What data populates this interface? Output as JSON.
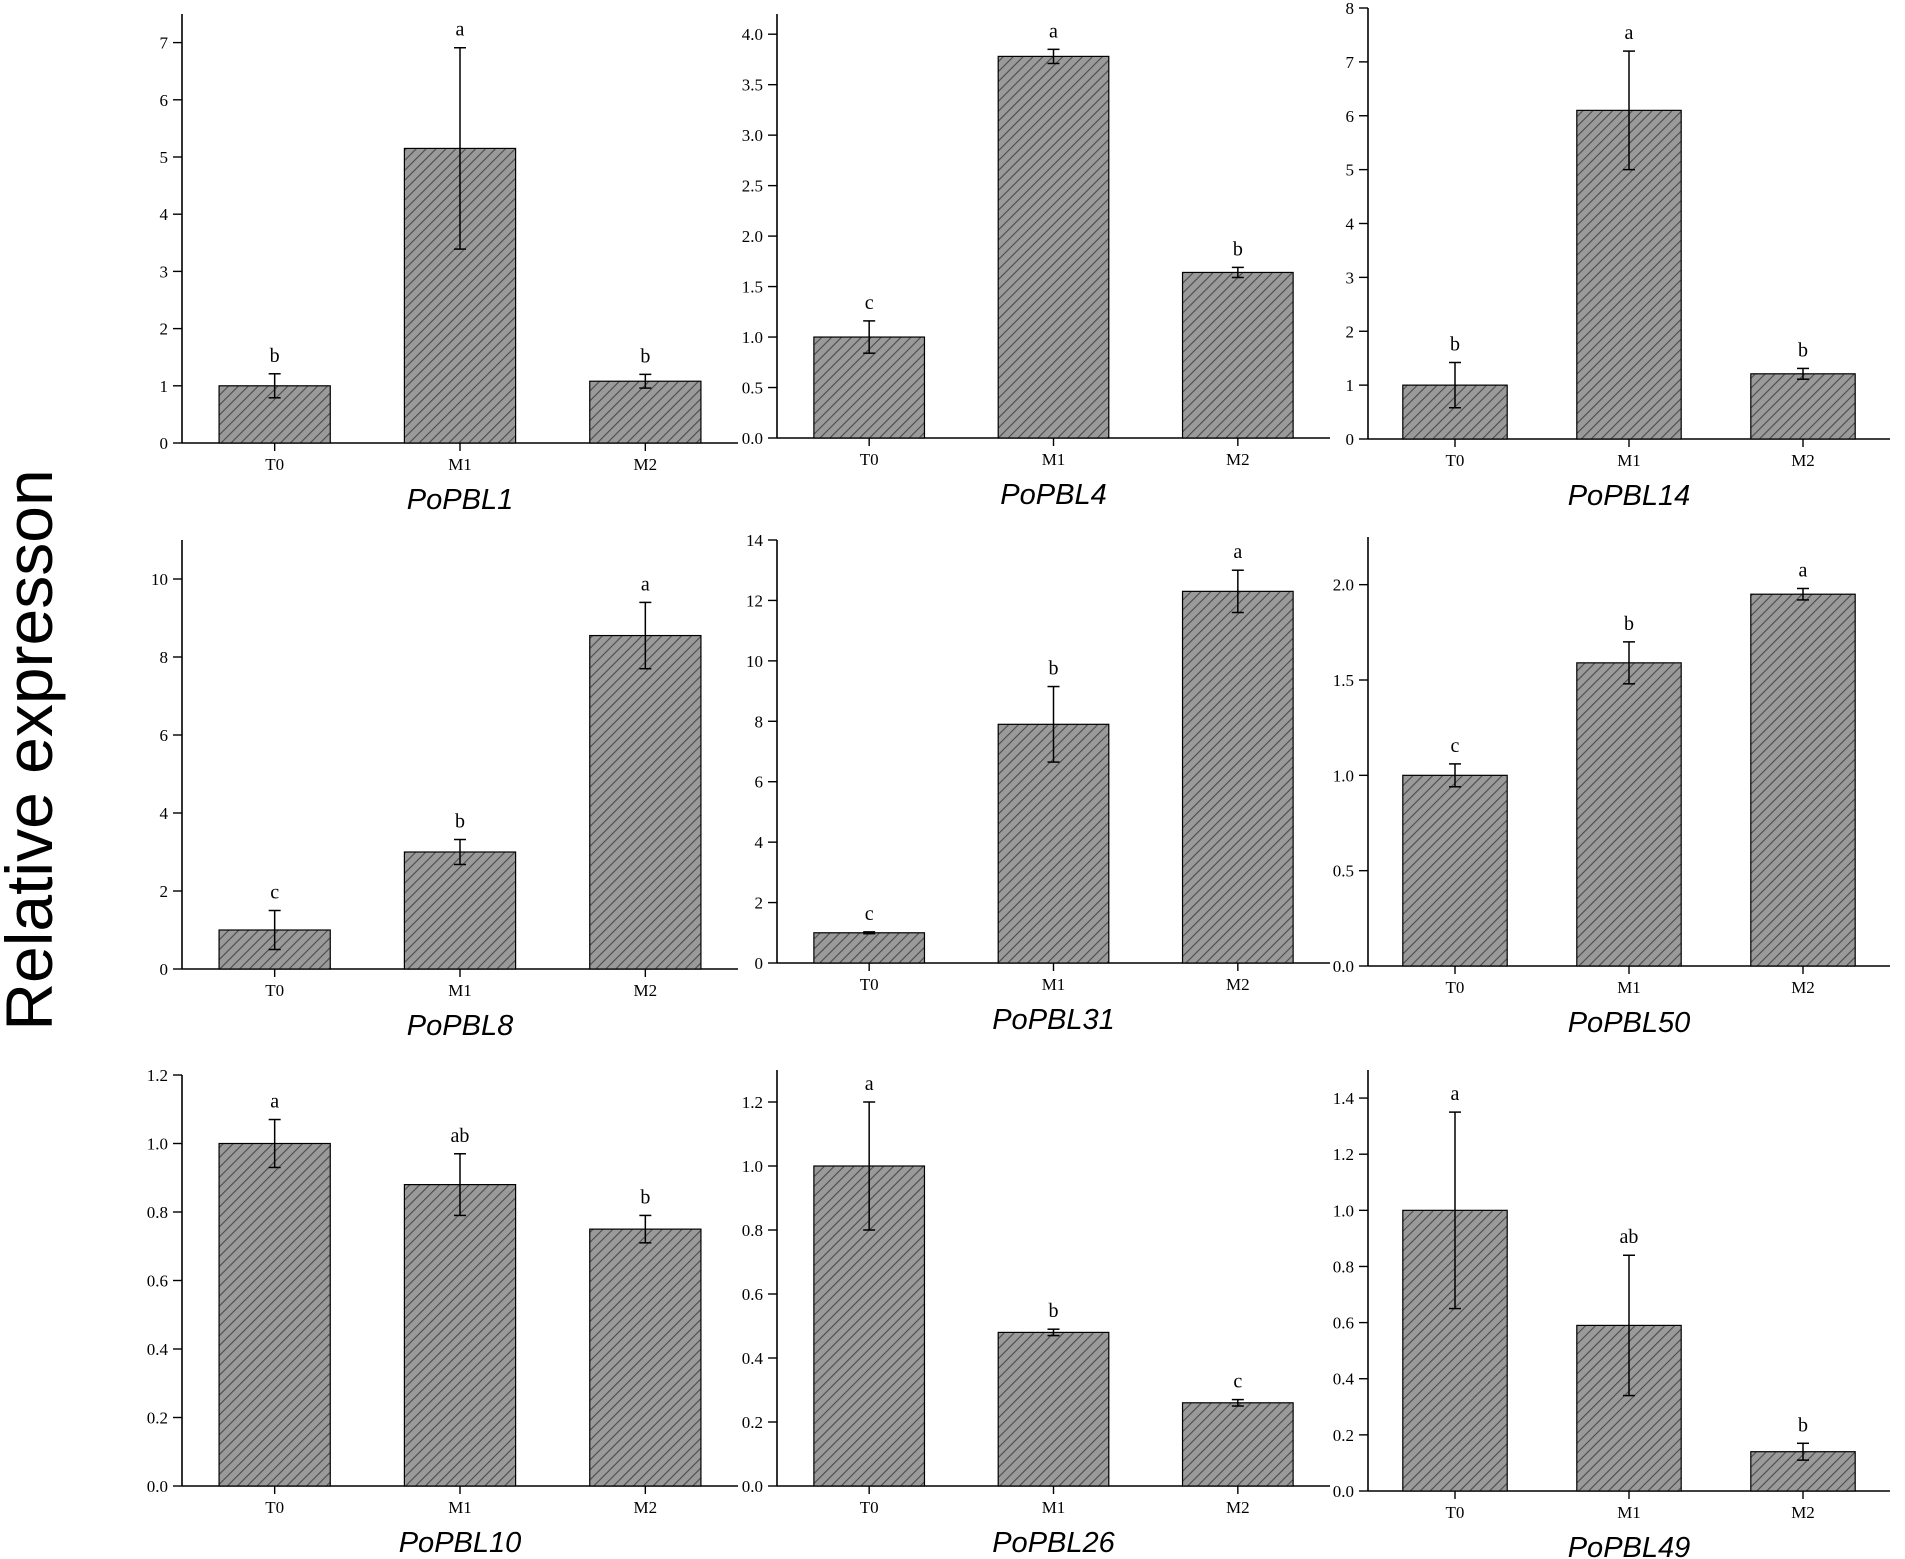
{
  "figure": {
    "ylabel": "Relative expresson"
  },
  "colors": {
    "bar_fill": "#9a9a9a",
    "hatch": "#4a4a4a",
    "axis": "#000000"
  },
  "chart_data": [
    {
      "type": "bar",
      "title": "PoPBL1",
      "categories": [
        "T0",
        "M1",
        "M2"
      ],
      "values": [
        1.0,
        5.15,
        1.08
      ],
      "errors": [
        0.21,
        1.76,
        0.12
      ],
      "letters": [
        "b",
        "a",
        "b"
      ],
      "ylim": [
        0,
        7.5
      ],
      "yticks": [
        0,
        1,
        2,
        3,
        4,
        5,
        6,
        7
      ],
      "ytick_labels": [
        "0",
        "1",
        "2",
        "3",
        "4",
        "5",
        "6",
        "7"
      ]
    },
    {
      "type": "bar",
      "title": "PoPBL4",
      "categories": [
        "T0",
        "M1",
        "M2"
      ],
      "values": [
        1.0,
        3.78,
        1.64
      ],
      "errors": [
        0.16,
        0.07,
        0.05
      ],
      "letters": [
        "c",
        "a",
        "b"
      ],
      "ylim": [
        0,
        4.2
      ],
      "yticks": [
        0,
        0.5,
        1,
        1.5,
        2,
        2.5,
        3,
        3.5,
        4
      ],
      "ytick_labels": [
        "0.0",
        "0.5",
        "1.0",
        "1.5",
        "2.0",
        "2.5",
        "3.0",
        "3.5",
        "4.0"
      ]
    },
    {
      "type": "bar",
      "title": "PoPBL14",
      "categories": [
        "T0",
        "M1",
        "M2"
      ],
      "values": [
        1.0,
        6.1,
        1.21
      ],
      "errors": [
        0.42,
        1.1,
        0.1
      ],
      "letters": [
        "b",
        "a",
        "b"
      ],
      "ylim": [
        0,
        8
      ],
      "yticks": [
        0,
        1,
        2,
        3,
        4,
        5,
        6,
        7,
        8
      ],
      "ytick_labels": [
        "0",
        "1",
        "2",
        "3",
        "4",
        "5",
        "6",
        "7",
        "8"
      ]
    },
    {
      "type": "bar",
      "title": "PoPBL8",
      "categories": [
        "T0",
        "M1",
        "M2"
      ],
      "values": [
        1.0,
        3.0,
        8.55
      ],
      "errors": [
        0.5,
        0.32,
        0.85
      ],
      "letters": [
        "c",
        "b",
        "a"
      ],
      "ylim": [
        0,
        11
      ],
      "yticks": [
        0,
        2,
        4,
        6,
        8,
        10
      ],
      "ytick_labels": [
        "0",
        "2",
        "4",
        "6",
        "8",
        "10"
      ]
    },
    {
      "type": "bar",
      "title": "PoPBL31",
      "categories": [
        "T0",
        "M1",
        "M2"
      ],
      "values": [
        1.0,
        7.9,
        12.3
      ],
      "errors": [
        0.03,
        1.25,
        0.7
      ],
      "letters": [
        "c",
        "b",
        "a"
      ],
      "ylim": [
        0,
        14
      ],
      "yticks": [
        0,
        2,
        4,
        6,
        8,
        10,
        12,
        14
      ],
      "ytick_labels": [
        "0",
        "2",
        "4",
        "6",
        "8",
        "10",
        "12",
        "14"
      ]
    },
    {
      "type": "bar",
      "title": "PoPBL50",
      "categories": [
        "T0",
        "M1",
        "M2"
      ],
      "values": [
        1.0,
        1.59,
        1.95
      ],
      "errors": [
        0.06,
        0.11,
        0.03
      ],
      "letters": [
        "c",
        "b",
        "a"
      ],
      "ylim": [
        0,
        2.25
      ],
      "yticks": [
        0,
        0.5,
        1,
        1.5,
        2
      ],
      "ytick_labels": [
        "0.0",
        "0.5",
        "1.0",
        "1.5",
        "2.0"
      ]
    },
    {
      "type": "bar",
      "title": "PoPBL10",
      "categories": [
        "T0",
        "M1",
        "M2"
      ],
      "values": [
        1.0,
        0.88,
        0.75
      ],
      "errors": [
        0.07,
        0.09,
        0.04
      ],
      "letters": [
        "a",
        "ab",
        "b"
      ],
      "ylim": [
        0,
        1.2
      ],
      "yticks": [
        0,
        0.2,
        0.4,
        0.6,
        0.8,
        1,
        1.2
      ],
      "ytick_labels": [
        "0.0",
        "0.2",
        "0.4",
        "0.6",
        "0.8",
        "1.0",
        "1.2"
      ]
    },
    {
      "type": "bar",
      "title": "PoPBL26",
      "categories": [
        "T0",
        "M1",
        "M2"
      ],
      "values": [
        1.0,
        0.48,
        0.26
      ],
      "errors": [
        0.2,
        0.01,
        0.01
      ],
      "letters": [
        "a",
        "b",
        "c"
      ],
      "ylim": [
        0,
        1.3
      ],
      "yticks": [
        0,
        0.2,
        0.4,
        0.6,
        0.8,
        1,
        1.2
      ],
      "ytick_labels": [
        "0.0",
        "0.2",
        "0.4",
        "0.6",
        "0.8",
        "1.0",
        "1.2"
      ]
    },
    {
      "type": "bar",
      "title": "PoPBL49",
      "categories": [
        "T0",
        "M1",
        "M2"
      ],
      "values": [
        1.0,
        0.59,
        0.14
      ],
      "errors": [
        0.35,
        0.25,
        0.03
      ],
      "letters": [
        "a",
        "ab",
        "b"
      ],
      "ylim": [
        0,
        1.5
      ],
      "yticks": [
        0,
        0.2,
        0.4,
        0.6,
        0.8,
        1,
        1.2,
        1.4
      ],
      "ytick_labels": [
        "0.0",
        "0.2",
        "0.4",
        "0.6",
        "0.8",
        "1.0",
        "1.2",
        "1.4"
      ]
    }
  ]
}
